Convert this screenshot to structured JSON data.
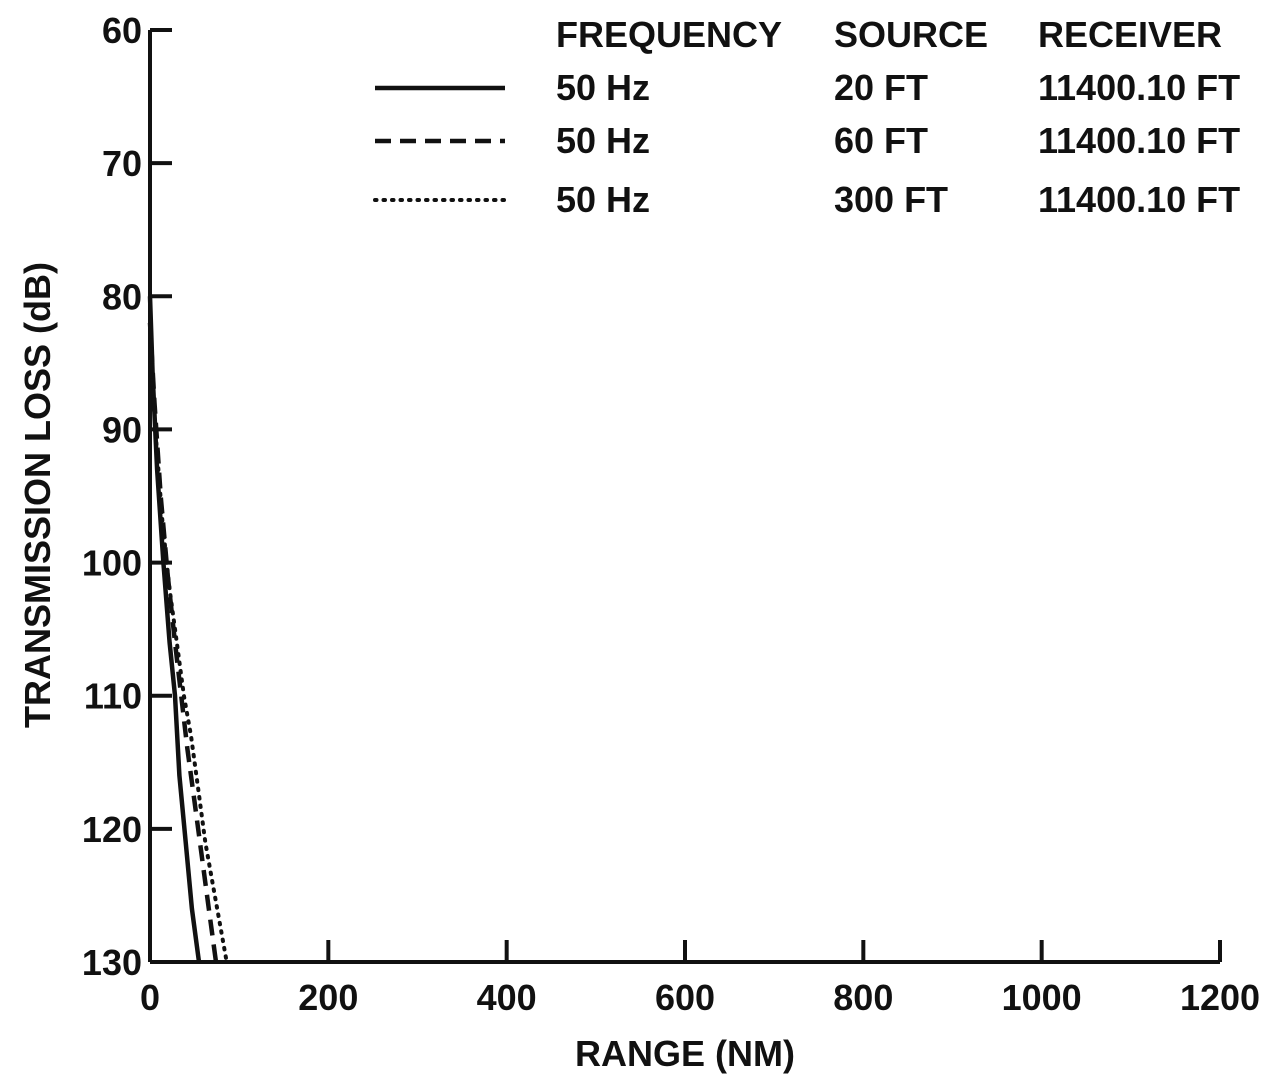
{
  "chart_data": {
    "type": "line",
    "title": "",
    "xlabel": "RANGE (NM)",
    "ylabel": "TRANSMISSION LOSS (dB)",
    "xlim": [
      0,
      1200
    ],
    "ylim": [
      60,
      130
    ],
    "y_inverted": true,
    "x_ticks": [
      0,
      200,
      400,
      600,
      800,
      1000,
      1200
    ],
    "x_tick_labels": [
      "0",
      "200",
      "400",
      "600",
      "800",
      "1000",
      "1200"
    ],
    "y_ticks": [
      60,
      70,
      80,
      90,
      100,
      110,
      120,
      130
    ],
    "y_tick_labels": [
      "60",
      "70",
      "80",
      "90",
      "100",
      "110",
      "120",
      "130"
    ],
    "grid": false,
    "legend_position": "top-right",
    "legend_headers": [
      "FREQUENCY",
      "SOURCE",
      "RECEIVER"
    ],
    "series": [
      {
        "style": "solid",
        "frequency": "50 Hz",
        "source": "20 FT",
        "receiver": "11400.10 FT",
        "x": [
          0,
          3,
          8,
          15,
          22,
          28,
          33,
          40,
          47,
          55
        ],
        "y": [
          80,
          86,
          93,
          100,
          106,
          110,
          116,
          121,
          126,
          130
        ]
      },
      {
        "style": "dashed",
        "frequency": "50 Hz",
        "source": "60 FT",
        "receiver": "11400.10 FT",
        "x": [
          0,
          5,
          12,
          20,
          28,
          35,
          42,
          50,
          58,
          66,
          74
        ],
        "y": [
          82,
          88,
          95,
          101,
          106,
          110,
          114,
          118,
          122,
          126,
          130
        ]
      },
      {
        "style": "dotted",
        "frequency": "50 Hz",
        "source": "300 FT",
        "receiver": "11400.10 FT",
        "x": [
          0,
          6,
          14,
          22,
          30,
          38,
          46,
          54,
          62,
          70,
          78,
          86
        ],
        "y": [
          84,
          90,
          97,
          102,
          106,
          110,
          113,
          117,
          121,
          124,
          127,
          130
        ]
      }
    ]
  }
}
